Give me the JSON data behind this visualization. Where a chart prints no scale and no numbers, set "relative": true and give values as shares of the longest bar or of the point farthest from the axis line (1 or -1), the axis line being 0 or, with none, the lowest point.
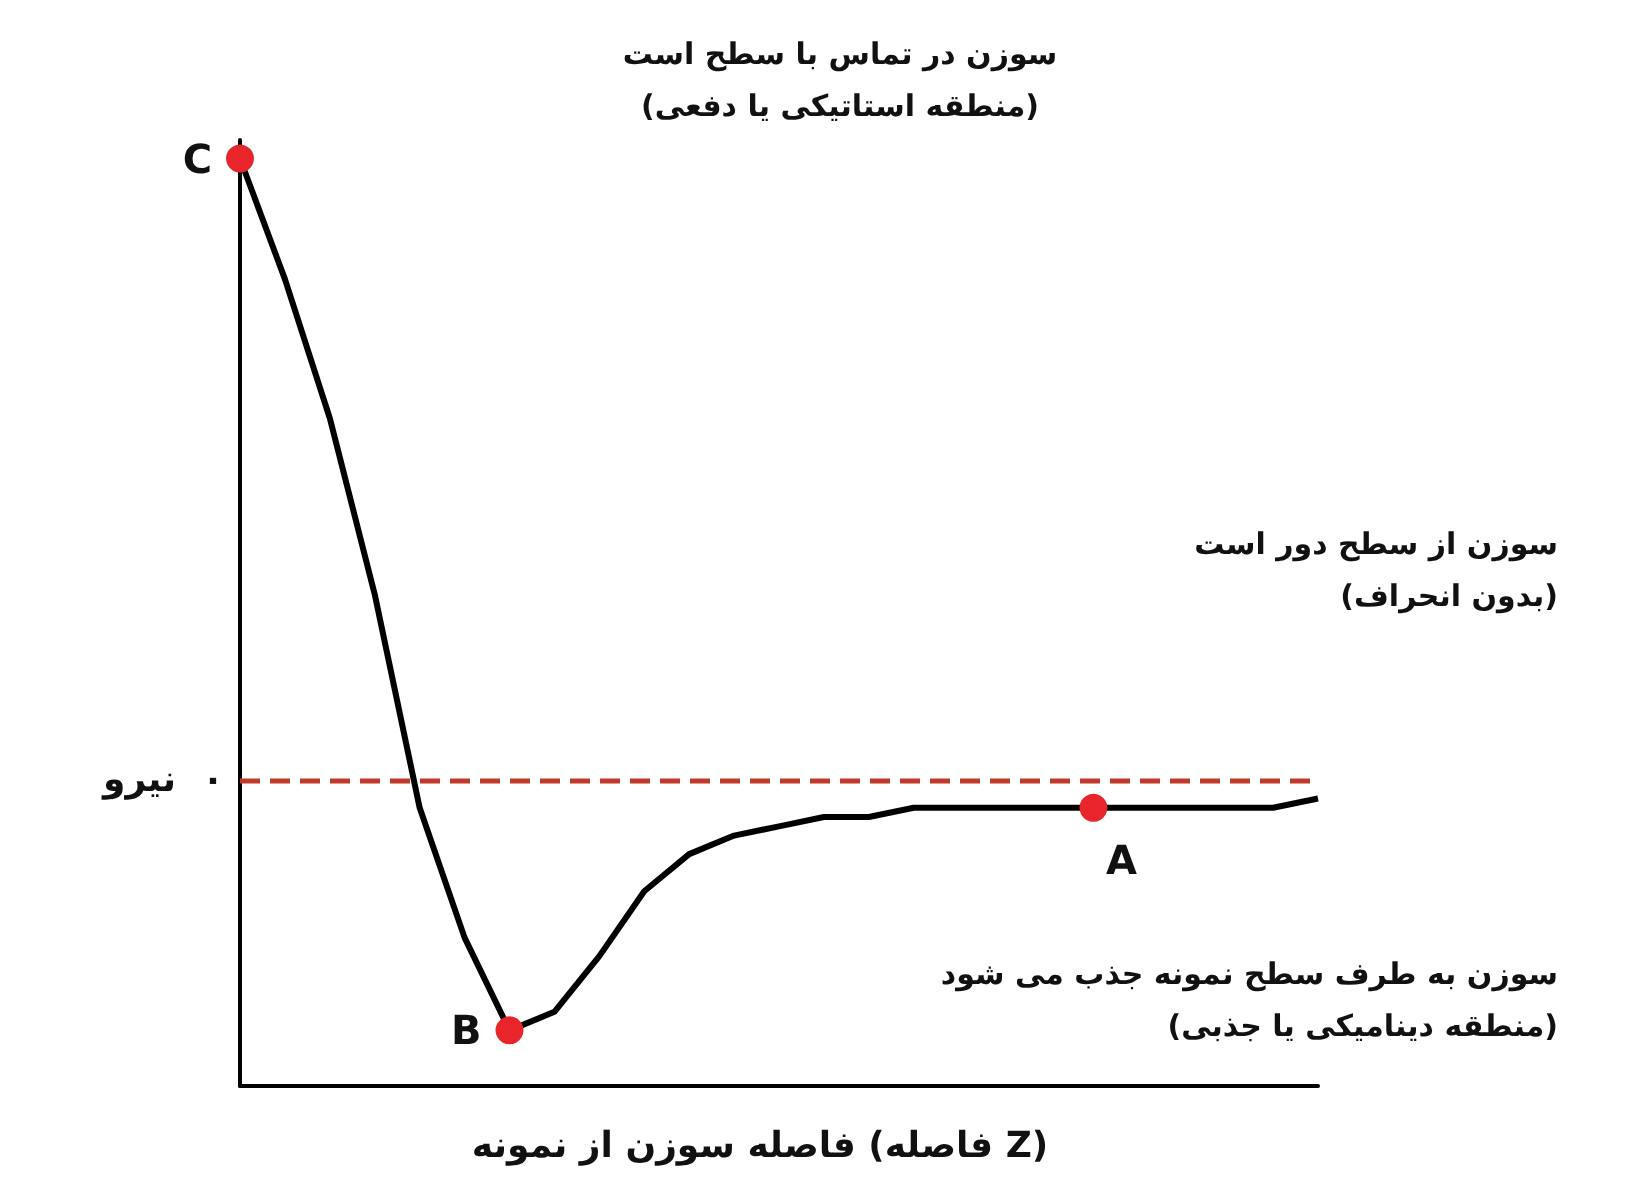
{
  "chart_data": {
    "type": "line",
    "relative": true,
    "xlabel": "فاصله سوزن از نمونه (فاصله Z)",
    "ylabel": "نیرو",
    "categories": [
      null,
      null,
      null,
      null,
      null,
      null,
      null,
      null,
      null,
      null,
      null,
      null,
      null,
      null,
      null,
      null,
      null,
      null,
      null,
      null,
      null,
      null,
      null,
      null,
      null
    ],
    "series": [
      {
        "color": "#000000",
        "values": [
          1,
          0.87,
          0.72,
          0.53,
          0.3,
          0.16,
          0.06,
          0.08,
          0.14,
          0.21,
          0.25,
          0.27,
          0.28,
          0.29,
          0.29,
          0.3,
          0.3,
          0.3,
          0.3,
          0.3,
          0.3,
          0.3,
          0.3,
          0.3,
          0.31
        ],
        "colors": [
          "#e8252b",
          null,
          null,
          null,
          null,
          null,
          "#e8252b",
          null,
          null,
          null,
          null,
          null,
          null,
          null,
          null,
          null,
          null,
          null,
          null,
          "#e8252b",
          null,
          null,
          null,
          null,
          null
        ]
      }
    ],
    "ref_lines": [
      {
        "axis": "y",
        "value": 0.33,
        "label": "۰",
        "color": "#c0392b",
        "line_style": "dashed"
      }
    ],
    "annotations": [
      "C",
      "B",
      "A",
      "سوزن در تماس با سطح است\n(منطقه استاتیکی یا دفعی)",
      "سوزن از سطح دور است\n(بدون انحراف)",
      "سوزن به طرف سطح نمونه جذب می شود\n(منطقه دینامیکی یا جذبی)"
    ],
    "grid": false
  }
}
